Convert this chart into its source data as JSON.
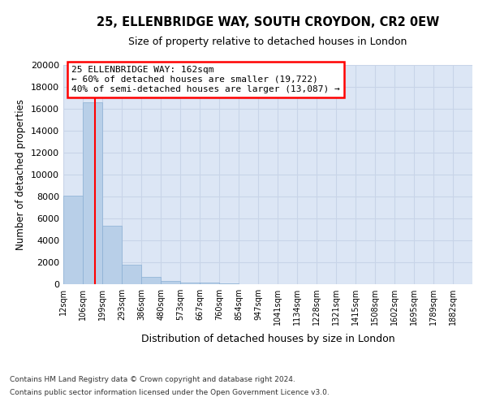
{
  "title_line1": "25, ELLENBRIDGE WAY, SOUTH CROYDON, CR2 0EW",
  "title_line2": "Size of property relative to detached houses in London",
  "xlabel": "Distribution of detached houses by size in London",
  "ylabel": "Number of detached properties",
  "bar_labels": [
    "12sqm",
    "106sqm",
    "199sqm",
    "293sqm",
    "386sqm",
    "480sqm",
    "573sqm",
    "667sqm",
    "760sqm",
    "854sqm",
    "947sqm",
    "1041sqm",
    "1134sqm",
    "1228sqm",
    "1321sqm",
    "1415sqm",
    "1508sqm",
    "1602sqm",
    "1695sqm",
    "1789sqm",
    "1882sqm"
  ],
  "bar_heights": [
    8100,
    16600,
    5300,
    1800,
    700,
    300,
    175,
    140,
    100,
    0,
    0,
    0,
    0,
    0,
    0,
    0,
    0,
    0,
    0,
    0,
    0
  ],
  "bar_color": "#b8cfe8",
  "bar_edge_color": "#8aafd4",
  "grid_color": "#c8d4e8",
  "background_color": "#dce6f5",
  "red_line_x": 162,
  "annotation_line1": "25 ELLENBRIDGE WAY: 162sqm",
  "annotation_line2": "← 60% of detached houses are smaller (19,722)",
  "annotation_line3": "40% of semi-detached houses are larger (13,087) →",
  "ylim": [
    0,
    20000
  ],
  "yticks": [
    0,
    2000,
    4000,
    6000,
    8000,
    10000,
    12000,
    14000,
    16000,
    18000,
    20000
  ],
  "footnote_line1": "Contains HM Land Registry data © Crown copyright and database right 2024.",
  "footnote_line2": "Contains public sector information licensed under the Open Government Licence v3.0.",
  "bin_edges": [
    12,
    106,
    199,
    293,
    386,
    480,
    573,
    667,
    760,
    854,
    947,
    1041,
    1134,
    1228,
    1321,
    1415,
    1508,
    1602,
    1695,
    1789,
    1882,
    1975
  ]
}
